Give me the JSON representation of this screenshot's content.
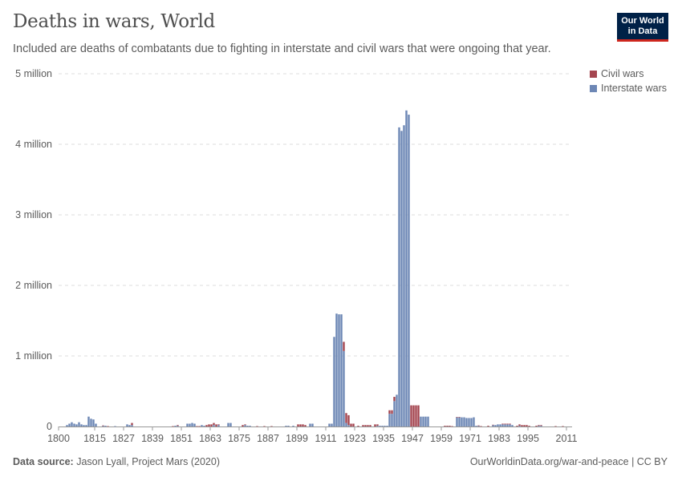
{
  "title": "Deaths in wars, World",
  "subtitle": "Included are deaths of combatants due to fighting in interstate and civil wars that were ongoing that year.",
  "logo": {
    "line1": "Our World",
    "line2": "in Data"
  },
  "footer": {
    "source_label": "Data source:",
    "source": "Jason Lyall, Project Mars (2020)",
    "link": "OurWorldinData.org/war-and-peace | CC BY"
  },
  "chart_data": {
    "type": "bar",
    "stacked": true,
    "title": "Deaths in wars, World",
    "xlabel": "",
    "ylabel": "",
    "xlim": [
      1800,
      2011
    ],
    "ylim": [
      0,
      5000000
    ],
    "grid": "horizontal dashed",
    "legend_position": "top-right",
    "x_ticks": [
      1800,
      1815,
      1827,
      1839,
      1851,
      1863,
      1875,
      1887,
      1899,
      1911,
      1923,
      1935,
      1947,
      1959,
      1971,
      1983,
      1995,
      2011
    ],
    "y_ticks": [
      {
        "value": 0,
        "label": "0"
      },
      {
        "value": 1000000,
        "label": "1 million"
      },
      {
        "value": 2000000,
        "label": "2 million"
      },
      {
        "value": 3000000,
        "label": "3 million"
      },
      {
        "value": 4000000,
        "label": "4 million"
      },
      {
        "value": 5000000,
        "label": "5 million"
      }
    ],
    "series": [
      {
        "name": "Interstate wars",
        "color": "#6d87b5",
        "points": [
          [
            1803,
            20000
          ],
          [
            1804,
            40000
          ],
          [
            1805,
            60000
          ],
          [
            1806,
            40000
          ],
          [
            1807,
            30000
          ],
          [
            1808,
            60000
          ],
          [
            1809,
            30000
          ],
          [
            1810,
            20000
          ],
          [
            1811,
            20000
          ],
          [
            1812,
            140000
          ],
          [
            1813,
            110000
          ],
          [
            1814,
            100000
          ],
          [
            1815,
            40000
          ],
          [
            1818,
            10000
          ],
          [
            1819,
            10000
          ],
          [
            1823,
            5000
          ],
          [
            1828,
            30000
          ],
          [
            1829,
            20000
          ],
          [
            1830,
            20000
          ],
          [
            1848,
            10000
          ],
          [
            1849,
            10000
          ],
          [
            1853,
            40000
          ],
          [
            1854,
            40000
          ],
          [
            1855,
            50000
          ],
          [
            1856,
            40000
          ],
          [
            1859,
            20000
          ],
          [
            1860,
            10000
          ],
          [
            1864,
            20000
          ],
          [
            1866,
            20000
          ],
          [
            1870,
            50000
          ],
          [
            1871,
            50000
          ],
          [
            1877,
            20000
          ],
          [
            1878,
            10000
          ],
          [
            1879,
            10000
          ],
          [
            1894,
            10000
          ],
          [
            1895,
            10000
          ],
          [
            1897,
            10000
          ],
          [
            1904,
            40000
          ],
          [
            1905,
            40000
          ],
          [
            1912,
            40000
          ],
          [
            1913,
            40000
          ],
          [
            1914,
            1270000
          ],
          [
            1915,
            1600000
          ],
          [
            1916,
            1590000
          ],
          [
            1917,
            1590000
          ],
          [
            1918,
            1070000
          ],
          [
            1919,
            50000
          ],
          [
            1920,
            20000
          ],
          [
            1932,
            10000
          ],
          [
            1933,
            10000
          ],
          [
            1934,
            10000
          ],
          [
            1935,
            10000
          ],
          [
            1936,
            10000
          ],
          [
            1937,
            180000
          ],
          [
            1938,
            180000
          ],
          [
            1939,
            360000
          ],
          [
            1940,
            450000
          ],
          [
            1941,
            4240000
          ],
          [
            1942,
            4190000
          ],
          [
            1943,
            4270000
          ],
          [
            1944,
            4480000
          ],
          [
            1945,
            4420000
          ],
          [
            1950,
            140000
          ],
          [
            1951,
            140000
          ],
          [
            1952,
            140000
          ],
          [
            1953,
            140000
          ],
          [
            1965,
            130000
          ],
          [
            1966,
            130000
          ],
          [
            1967,
            130000
          ],
          [
            1968,
            130000
          ],
          [
            1969,
            120000
          ],
          [
            1970,
            120000
          ],
          [
            1971,
            120000
          ],
          [
            1972,
            130000
          ],
          [
            1973,
            10000
          ],
          [
            1974,
            10000
          ],
          [
            1980,
            20000
          ],
          [
            1981,
            20000
          ],
          [
            1982,
            30000
          ],
          [
            1983,
            30000
          ],
          [
            1984,
            30000
          ],
          [
            1985,
            30000
          ],
          [
            1986,
            30000
          ],
          [
            1987,
            30000
          ],
          [
            1988,
            20000
          ],
          [
            1991,
            10000
          ],
          [
            1999,
            10000
          ],
          [
            2000,
            10000
          ]
        ]
      },
      {
        "name": "Civil wars",
        "color": "#a4454f",
        "points": [
          [
            1818,
            5000
          ],
          [
            1820,
            5000
          ],
          [
            1830,
            30000
          ],
          [
            1847,
            5000
          ],
          [
            1849,
            10000
          ],
          [
            1857,
            5000
          ],
          [
            1858,
            5000
          ],
          [
            1861,
            20000
          ],
          [
            1862,
            30000
          ],
          [
            1863,
            30000
          ],
          [
            1864,
            30000
          ],
          [
            1865,
            30000
          ],
          [
            1866,
            10000
          ],
          [
            1876,
            20000
          ],
          [
            1877,
            10000
          ],
          [
            1882,
            5000
          ],
          [
            1885,
            5000
          ],
          [
            1888,
            5000
          ],
          [
            1899,
            30000
          ],
          [
            1900,
            30000
          ],
          [
            1901,
            30000
          ],
          [
            1902,
            20000
          ],
          [
            1918,
            130000
          ],
          [
            1919,
            140000
          ],
          [
            1920,
            140000
          ],
          [
            1921,
            40000
          ],
          [
            1922,
            40000
          ],
          [
            1924,
            10000
          ],
          [
            1926,
            20000
          ],
          [
            1927,
            20000
          ],
          [
            1928,
            20000
          ],
          [
            1929,
            20000
          ],
          [
            1931,
            30000
          ],
          [
            1932,
            20000
          ],
          [
            1937,
            50000
          ],
          [
            1938,
            50000
          ],
          [
            1939,
            60000
          ],
          [
            1946,
            300000
          ],
          [
            1947,
            300000
          ],
          [
            1948,
            300000
          ],
          [
            1949,
            300000
          ],
          [
            1960,
            10000
          ],
          [
            1961,
            10000
          ],
          [
            1962,
            10000
          ],
          [
            1963,
            5000
          ],
          [
            1965,
            5000
          ],
          [
            1966,
            5000
          ],
          [
            1974,
            5000
          ],
          [
            1975,
            5000
          ],
          [
            1978,
            10000
          ],
          [
            1980,
            5000
          ],
          [
            1984,
            10000
          ],
          [
            1985,
            10000
          ],
          [
            1986,
            10000
          ],
          [
            1987,
            10000
          ],
          [
            1990,
            10000
          ],
          [
            1991,
            20000
          ],
          [
            1992,
            20000
          ],
          [
            1993,
            20000
          ],
          [
            1994,
            20000
          ],
          [
            1995,
            10000
          ],
          [
            1998,
            10000
          ],
          [
            1999,
            10000
          ],
          [
            2000,
            10000
          ],
          [
            2006,
            5000
          ],
          [
            2009,
            5000
          ]
        ]
      }
    ]
  }
}
